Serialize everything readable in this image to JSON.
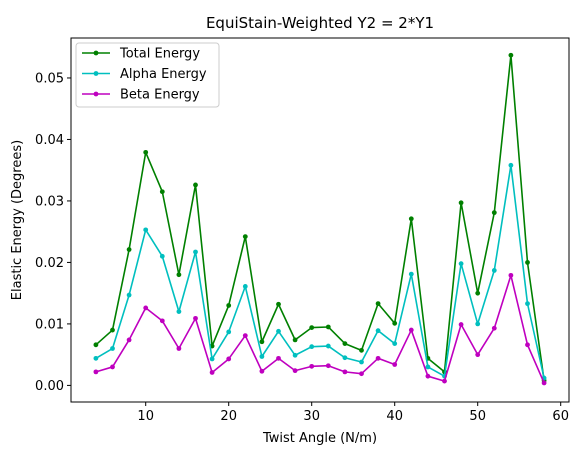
{
  "chart_data": {
    "type": "line",
    "title": "EquiStain-Weighted Y2 = 2*Y1",
    "xlabel": "Twist Angle (N/m)",
    "ylabel": "Elastic Energy (Degrees)",
    "xlim": [
      1,
      61
    ],
    "ylim": [
      -0.0027,
      0.0565
    ],
    "xticks": [
      10,
      20,
      30,
      40,
      50,
      60
    ],
    "yticks": [
      0.0,
      0.01,
      0.02,
      0.03,
      0.04,
      0.05
    ],
    "ytick_labels": [
      "0.00",
      "0.01",
      "0.02",
      "0.03",
      "0.04",
      "0.05"
    ],
    "grid": false,
    "legend_position": "upper-left",
    "x": [
      4,
      6,
      8,
      10,
      12,
      14,
      16,
      18,
      20,
      22,
      24,
      26,
      28,
      30,
      32,
      34,
      36,
      38,
      40,
      42,
      44,
      46,
      48,
      50,
      52,
      54,
      56,
      58
    ],
    "series": [
      {
        "name": "Total Energy",
        "color": "#008000",
        "values": [
          0.0066,
          0.009,
          0.0221,
          0.0379,
          0.0315,
          0.018,
          0.0326,
          0.0064,
          0.013,
          0.0242,
          0.0071,
          0.0132,
          0.0074,
          0.0094,
          0.0095,
          0.0068,
          0.0057,
          0.0133,
          0.0101,
          0.0271,
          0.0044,
          0.0022,
          0.0297,
          0.015,
          0.0281,
          0.0537,
          0.02,
          0.0008
        ]
      },
      {
        "name": "Alpha Energy",
        "color": "#00bfbf",
        "values": [
          0.0044,
          0.006,
          0.0147,
          0.0253,
          0.021,
          0.012,
          0.0217,
          0.0043,
          0.0087,
          0.0161,
          0.0047,
          0.0088,
          0.0049,
          0.0063,
          0.0064,
          0.0045,
          0.0038,
          0.0089,
          0.0068,
          0.0181,
          0.003,
          0.0015,
          0.0198,
          0.01,
          0.0187,
          0.0358,
          0.0133,
          0.0012
        ]
      },
      {
        "name": "Beta Energy",
        "color": "#bf00bf",
        "values": [
          0.0022,
          0.003,
          0.0074,
          0.0126,
          0.0105,
          0.006,
          0.0109,
          0.0021,
          0.0043,
          0.0081,
          0.0023,
          0.0044,
          0.0024,
          0.0031,
          0.0032,
          0.0022,
          0.0019,
          0.0044,
          0.0034,
          0.009,
          0.0015,
          0.0007,
          0.0099,
          0.005,
          0.0093,
          0.0179,
          0.0066,
          0.0004
        ]
      }
    ]
  }
}
